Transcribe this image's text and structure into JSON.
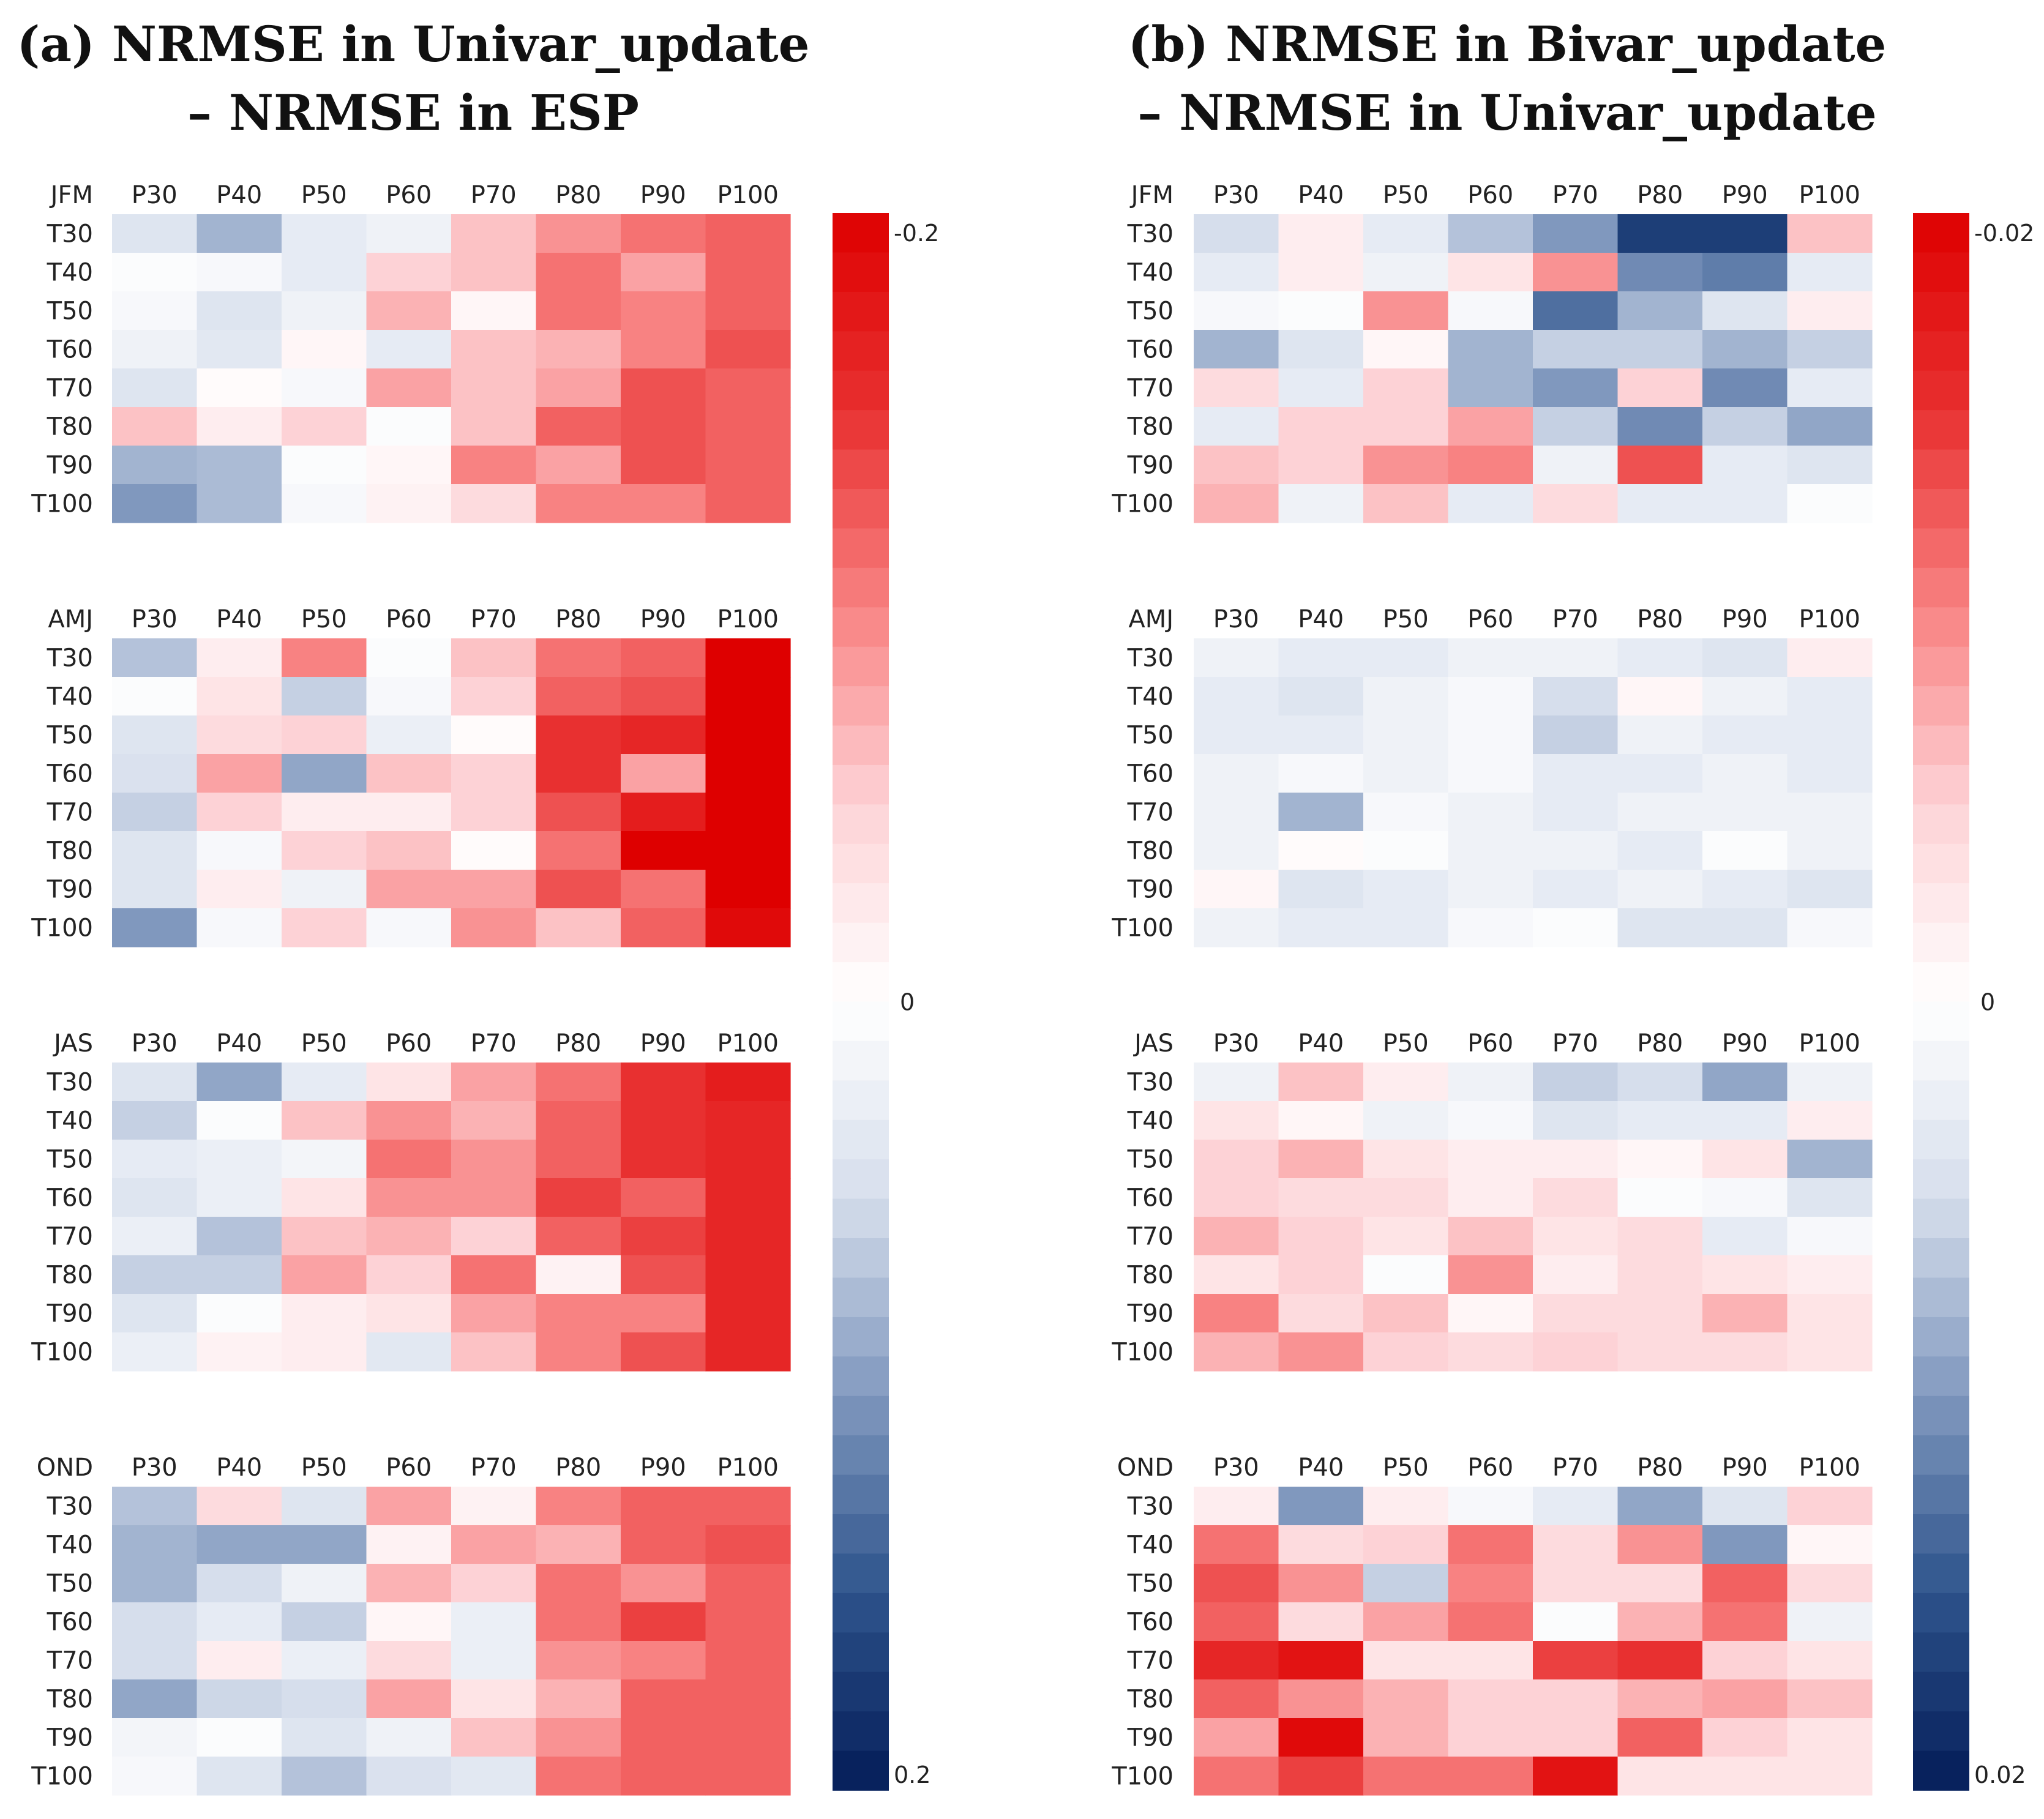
{
  "chart_data": [
    {
      "type": "heatmap",
      "title_line1": "(a) NRMSE in Univar_update",
      "title_line2": "– NRMSE in ESP",
      "columns": [
        "P30",
        "P40",
        "P50",
        "P60",
        "P70",
        "P80",
        "P90",
        "P100"
      ],
      "rows": [
        "T30",
        "T40",
        "T50",
        "T60",
        "T70",
        "T80",
        "T90",
        "T100"
      ],
      "colorbar": {
        "top_label": "-0.2",
        "mid_label": "0",
        "bottom_label": "0.2",
        "min": -0.2,
        "max": 0.2
      },
      "panels": [
        {
          "season": "JFM",
          "values": [
            [
              0.04,
              0.08,
              0.03,
              0.02,
              -0.06,
              -0.09,
              -0.11,
              -0.12
            ],
            [
              0.005,
              0.01,
              0.03,
              -0.05,
              -0.06,
              -0.11,
              -0.08,
              -0.12
            ],
            [
              0.01,
              0.04,
              0.02,
              -0.07,
              -0.01,
              -0.11,
              -0.1,
              -0.12
            ],
            [
              0.02,
              0.035,
              -0.01,
              0.03,
              -0.06,
              -0.07,
              -0.1,
              -0.13
            ],
            [
              0.04,
              -0.005,
              0.01,
              -0.08,
              -0.06,
              -0.08,
              -0.13,
              -0.12
            ],
            [
              -0.06,
              -0.02,
              -0.05,
              0.005,
              -0.06,
              -0.12,
              -0.13,
              -0.12
            ],
            [
              0.08,
              0.075,
              0.005,
              -0.01,
              -0.1,
              -0.08,
              -0.13,
              -0.12
            ],
            [
              0.1,
              0.075,
              0.01,
              -0.015,
              -0.04,
              -0.1,
              -0.1,
              -0.12
            ]
          ]
        },
        {
          "season": "AMJ",
          "values": [
            [
              0.07,
              -0.02,
              -0.1,
              0.005,
              -0.06,
              -0.11,
              -0.12,
              -0.2
            ],
            [
              0.005,
              -0.03,
              0.06,
              0.01,
              -0.05,
              -0.12,
              -0.13,
              -0.2
            ],
            [
              0.04,
              -0.04,
              -0.05,
              0.025,
              -0.005,
              -0.15,
              -0.16,
              -0.2
            ],
            [
              0.045,
              -0.08,
              0.09,
              -0.06,
              -0.05,
              -0.15,
              -0.08,
              -0.2
            ],
            [
              0.06,
              -0.05,
              -0.02,
              -0.02,
              -0.05,
              -0.13,
              -0.17,
              -0.2
            ],
            [
              0.04,
              0.01,
              -0.05,
              -0.06,
              -0.005,
              -0.11,
              -0.2,
              -0.2
            ],
            [
              0.04,
              -0.02,
              0.02,
              -0.08,
              -0.08,
              -0.13,
              -0.11,
              -0.2
            ],
            [
              0.1,
              0.01,
              -0.05,
              0.01,
              -0.09,
              -0.06,
              -0.12,
              -0.19
            ]
          ]
        },
        {
          "season": "JAS",
          "values": [
            [
              0.04,
              0.09,
              0.03,
              -0.03,
              -0.08,
              -0.11,
              -0.15,
              -0.17
            ],
            [
              0.06,
              0.005,
              -0.06,
              -0.09,
              -0.07,
              -0.12,
              -0.15,
              -0.16
            ],
            [
              0.03,
              0.025,
              0.015,
              -0.11,
              -0.09,
              -0.12,
              -0.15,
              -0.16
            ],
            [
              0.04,
              0.025,
              -0.03,
              -0.09,
              -0.09,
              -0.14,
              -0.12,
              -0.16
            ],
            [
              0.025,
              0.07,
              -0.06,
              -0.07,
              -0.05,
              -0.12,
              -0.14,
              -0.16
            ],
            [
              0.06,
              0.06,
              -0.08,
              -0.05,
              -0.11,
              -0.015,
              -0.13,
              -0.16
            ],
            [
              0.04,
              0.005,
              -0.02,
              -0.03,
              -0.08,
              -0.1,
              -0.1,
              -0.16
            ],
            [
              0.025,
              -0.015,
              -0.02,
              0.035,
              -0.06,
              -0.1,
              -0.13,
              -0.16
            ]
          ]
        },
        {
          "season": "OND",
          "values": [
            [
              0.07,
              -0.04,
              0.04,
              -0.08,
              -0.015,
              -0.1,
              -0.12,
              -0.12
            ],
            [
              0.08,
              0.09,
              0.09,
              -0.015,
              -0.08,
              -0.07,
              -0.12,
              -0.13
            ],
            [
              0.08,
              0.05,
              0.02,
              -0.07,
              -0.05,
              -0.11,
              -0.09,
              -0.12
            ],
            [
              0.05,
              0.03,
              0.06,
              -0.01,
              0.025,
              -0.11,
              -0.14,
              -0.12
            ],
            [
              0.05,
              -0.02,
              0.025,
              -0.04,
              0.025,
              -0.09,
              -0.1,
              -0.12
            ],
            [
              0.09,
              0.055,
              0.05,
              -0.08,
              -0.03,
              -0.07,
              -0.12,
              -0.12
            ],
            [
              0.015,
              0.005,
              0.04,
              0.02,
              -0.06,
              -0.09,
              -0.12,
              -0.12
            ],
            [
              0.01,
              0.04,
              0.07,
              0.045,
              0.035,
              -0.11,
              -0.12,
              -0.12
            ]
          ]
        }
      ]
    },
    {
      "type": "heatmap",
      "title_line1": "(b) NRMSE in Bivar_update",
      "title_line2": "– NRMSE in Univar_update",
      "columns": [
        "P30",
        "P40",
        "P50",
        "P60",
        "P70",
        "P80",
        "P90",
        "P100"
      ],
      "rows": [
        "T30",
        "T40",
        "T50",
        "T60",
        "T70",
        "T80",
        "T90",
        "T100"
      ],
      "colorbar": {
        "top_label": "-0.02",
        "mid_label": "0",
        "bottom_label": "0.02",
        "min": -0.02,
        "max": 0.02
      },
      "panels": [
        {
          "season": "JFM",
          "values": [
            [
              0.005,
              -0.002,
              0.003,
              0.007,
              0.01,
              0.017,
              0.017,
              -0.006
            ],
            [
              0.003,
              -0.002,
              0.002,
              -0.003,
              -0.009,
              0.011,
              0.012,
              0.003
            ],
            [
              0.001,
              0.0005,
              -0.009,
              0.001,
              0.013,
              0.008,
              0.004,
              -0.002
            ],
            [
              0.008,
              0.004,
              -0.001,
              0.008,
              0.006,
              0.006,
              0.008,
              0.006
            ],
            [
              -0.004,
              0.003,
              -0.005,
              0.008,
              0.01,
              -0.005,
              0.011,
              0.003
            ],
            [
              0.003,
              -0.005,
              -0.005,
              -0.008,
              0.006,
              0.011,
              0.006,
              0.009
            ],
            [
              -0.006,
              -0.005,
              -0.009,
              -0.01,
              0.002,
              -0.013,
              0.003,
              0.004
            ],
            [
              -0.007,
              0.002,
              -0.006,
              0.003,
              -0.004,
              0.003,
              0.003,
              0.0005
            ]
          ]
        },
        {
          "season": "AMJ",
          "values": [
            [
              0.002,
              0.003,
              0.003,
              0.002,
              0.002,
              0.003,
              0.004,
              -0.002
            ],
            [
              0.003,
              0.004,
              0.002,
              0.001,
              0.005,
              -0.001,
              0.002,
              0.003
            ],
            [
              0.003,
              0.003,
              0.002,
              0.001,
              0.006,
              0.002,
              0.003,
              0.003
            ],
            [
              0.002,
              0.001,
              0.002,
              0.001,
              0.003,
              0.003,
              0.002,
              0.003
            ],
            [
              0.002,
              0.008,
              0.001,
              0.002,
              0.003,
              0.002,
              0.002,
              0.002
            ],
            [
              0.002,
              -0.0005,
              0.0005,
              0.002,
              0.002,
              0.003,
              0.0005,
              0.002
            ],
            [
              -0.001,
              0.004,
              0.003,
              0.002,
              0.003,
              0.002,
              0.003,
              0.004
            ],
            [
              0.002,
              0.003,
              0.003,
              0.001,
              0.0005,
              0.004,
              0.004,
              0.001
            ]
          ]
        },
        {
          "season": "JAS",
          "values": [
            [
              0.002,
              -0.006,
              -0.002,
              0.002,
              0.006,
              0.005,
              0.009,
              0.002
            ],
            [
              -0.003,
              -0.001,
              0.002,
              0.001,
              0.004,
              0.003,
              0.003,
              -0.002
            ],
            [
              -0.005,
              -0.007,
              -0.003,
              -0.002,
              -0.002,
              -0.001,
              -0.003,
              0.008
            ],
            [
              -0.005,
              -0.004,
              -0.004,
              -0.002,
              -0.004,
              0.0005,
              0.001,
              0.004
            ],
            [
              -0.007,
              -0.005,
              -0.003,
              -0.006,
              -0.003,
              -0.004,
              0.003,
              0.001
            ],
            [
              -0.003,
              -0.005,
              0.0005,
              -0.009,
              -0.002,
              -0.004,
              -0.003,
              -0.002
            ],
            [
              -0.01,
              -0.004,
              -0.006,
              -0.001,
              -0.004,
              -0.004,
              -0.007,
              -0.003
            ],
            [
              -0.007,
              -0.009,
              -0.005,
              -0.004,
              -0.005,
              -0.004,
              -0.004,
              -0.003
            ]
          ]
        },
        {
          "season": "OND",
          "values": [
            [
              -0.002,
              0.01,
              -0.002,
              0.001,
              0.003,
              0.009,
              0.004,
              -0.005
            ],
            [
              -0.011,
              -0.004,
              -0.005,
              -0.011,
              -0.004,
              -0.009,
              0.01,
              -0.001
            ],
            [
              -0.013,
              -0.009,
              0.006,
              -0.01,
              -0.004,
              -0.004,
              -0.012,
              -0.004
            ],
            [
              -0.012,
              -0.004,
              -0.008,
              -0.011,
              0.0005,
              -0.007,
              -0.011,
              0.002
            ],
            [
              -0.016,
              -0.018,
              -0.003,
              -0.003,
              -0.014,
              -0.015,
              -0.005,
              -0.003
            ],
            [
              -0.012,
              -0.009,
              -0.007,
              -0.005,
              -0.005,
              -0.007,
              -0.008,
              -0.006
            ],
            [
              -0.008,
              -0.019,
              -0.007,
              -0.005,
              -0.005,
              -0.012,
              -0.005,
              -0.003
            ],
            [
              -0.011,
              -0.014,
              -0.011,
              -0.011,
              -0.018,
              -0.003,
              -0.003,
              -0.003
            ]
          ]
        }
      ]
    }
  ]
}
